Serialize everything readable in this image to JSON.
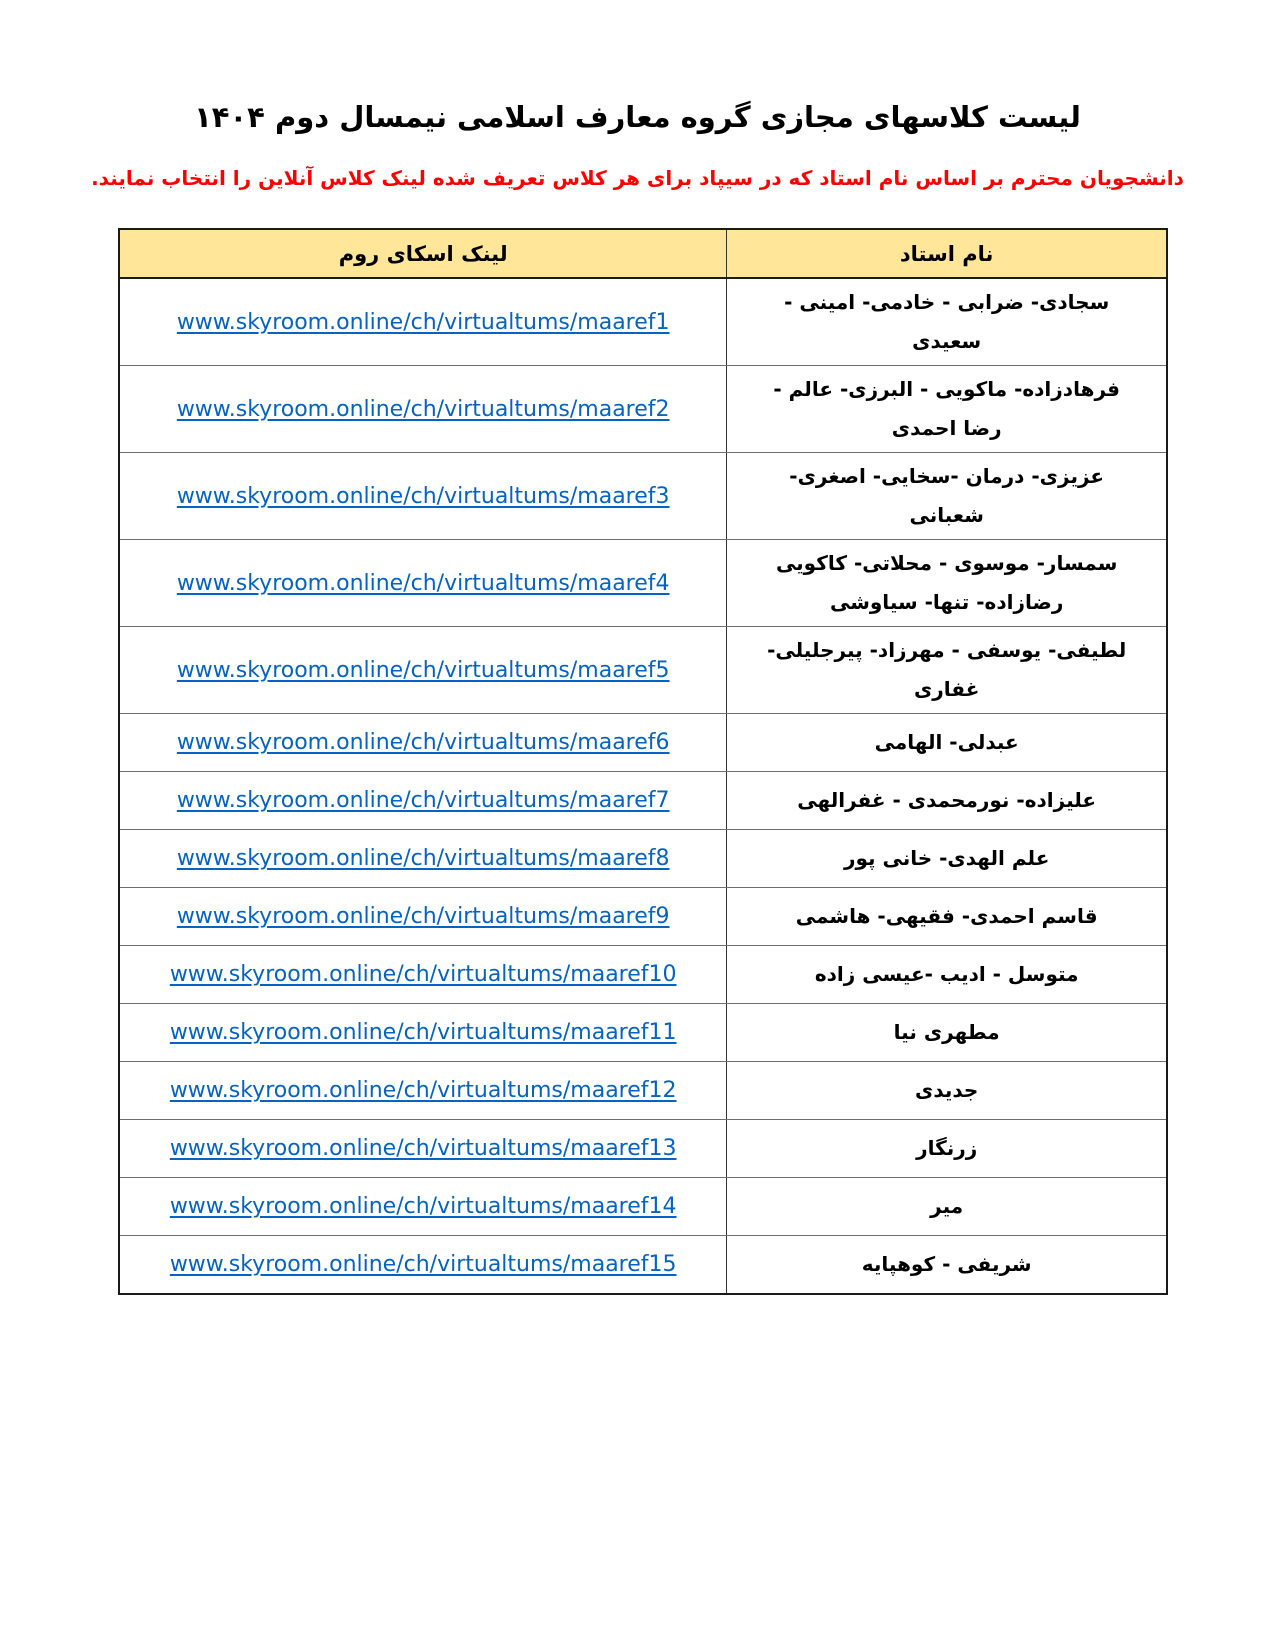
{
  "page": {
    "title": "لیست کلاسهای مجازی گروه معارف اسلامی نیمسال دوم ۱۴۰۴",
    "subtitle": "دانشجویان محترم بر اساس نام استاد که در سیپاد برای هر کلاس تعریف شده لینک کلاس آنلاین را انتخاب نمایند."
  },
  "colors": {
    "header_background": "#FFE699",
    "link_blue": "#0563C1",
    "subtitle_red": "#FF0000",
    "border_dark": "#1A1A1A"
  },
  "table": {
    "headers": {
      "link": "لینک اسکای روم",
      "professor": "نام استاد"
    },
    "rows": [
      {
        "professor": "سجادی- ضرابی  - خادمی- امینی  - سعیدی",
        "link": "www.skyroom.online/ch/virtualtums/maaref1"
      },
      {
        "professor": "فرهادزاده- ماکویی  - البرزی- عالم - رضا احمدی",
        "link": "www.skyroom.online/ch/virtualtums/maaref2"
      },
      {
        "professor": "عزیزی- درمان -سخایی- اصغری- شعبانی",
        "link": "www.skyroom.online/ch/virtualtums/maaref3"
      },
      {
        "professor": "سمسار- موسوی - محلاتی- کاکویی رضازاده- تنها- سیاوشی",
        "link": "www.skyroom.online/ch/virtualtums/maaref4"
      },
      {
        "professor": "لطیفی- یوسفی - مهرزاد- پیرجلیلی- غفاری",
        "link": "www.skyroom.online/ch/virtualtums/maaref5"
      },
      {
        "professor": "عبدلی- الهامی",
        "link": "www.skyroom.online/ch/virtualtums/maaref6"
      },
      {
        "professor": "علیزاده- نورمحمدی - غفرالهی",
        "link": "www.skyroom.online/ch/virtualtums/maaref7"
      },
      {
        "professor": "علم الهدی- خانی پور",
        "link": "www.skyroom.online/ch/virtualtums/maaref8"
      },
      {
        "professor": "قاسم احمدی- فقیهی- هاشمی",
        "link": "www.skyroom.online/ch/virtualtums/maaref9"
      },
      {
        "professor": "متوسل  - ادیب -عیسی زاده",
        "link": "www.skyroom.online/ch/virtualtums/maaref10"
      },
      {
        "professor": "مطهری نیا",
        "link": "www.skyroom.online/ch/virtualtums/maaref11"
      },
      {
        "professor": "جدیدی",
        "link": "www.skyroom.online/ch/virtualtums/maaref12"
      },
      {
        "professor": "زرنگار",
        "link": "www.skyroom.online/ch/virtualtums/maaref13"
      },
      {
        "professor": "میر",
        "link": "www.skyroom.online/ch/virtualtums/maaref14"
      },
      {
        "professor": "شریفی - کوهپایه",
        "link": "www.skyroom.online/ch/virtualtums/maaref15"
      }
    ]
  }
}
